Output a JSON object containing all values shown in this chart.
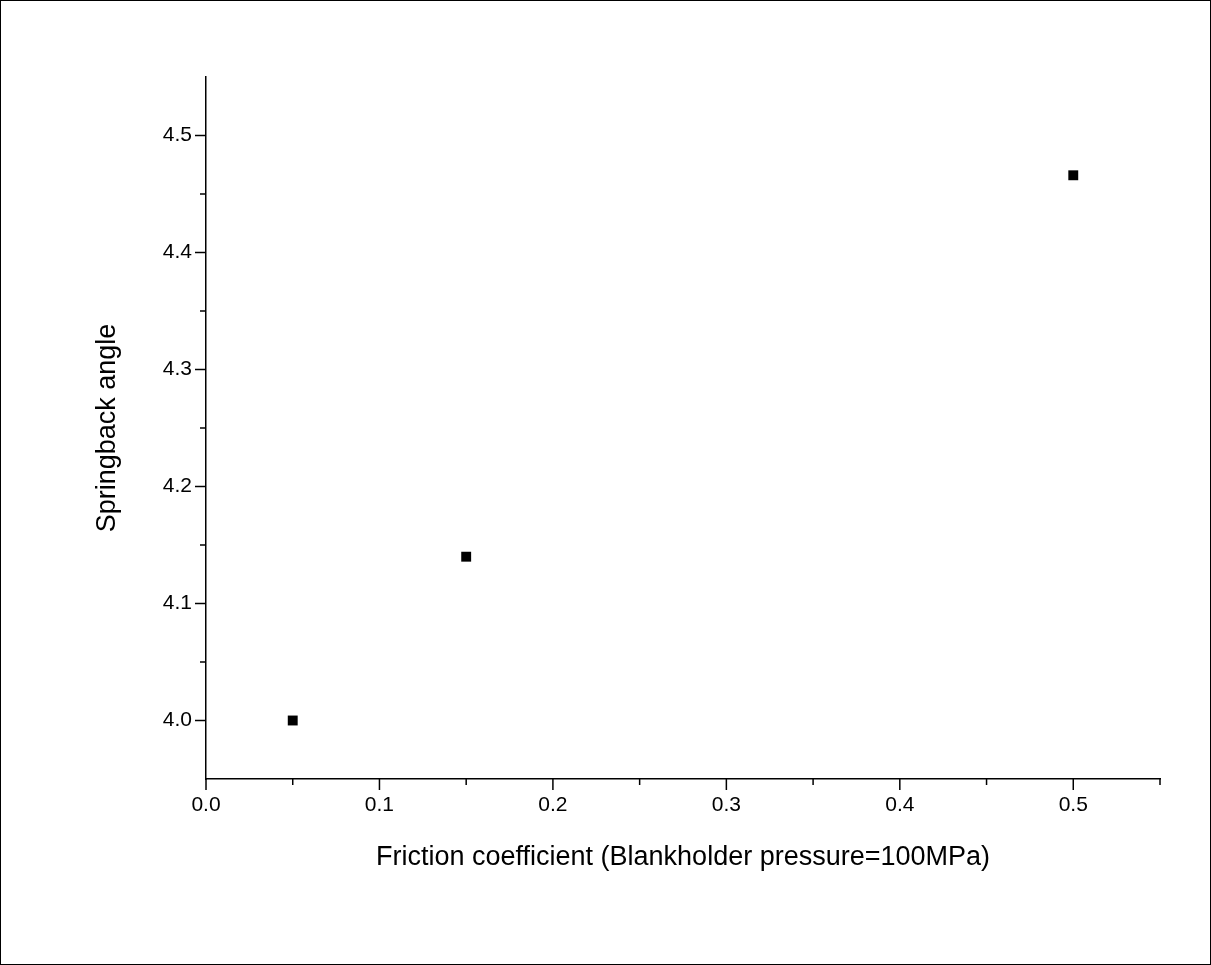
{
  "chart_data": {
    "type": "scatter",
    "xlabel": "Friction coefficient (Blankholder pressure=100MPa)",
    "ylabel": "Springback angle",
    "x": [
      0.05,
      0.15,
      0.5
    ],
    "series": [
      {
        "color": "#000000",
        "values": [
          4.0,
          4.14,
          4.466
        ]
      }
    ],
    "marker": "square",
    "grid": false,
    "legend": false,
    "xlim": [
      0,
      0.55
    ],
    "xticks": [
      {
        "value": 0,
        "label": "0.0"
      },
      {
        "value": 0.05,
        "label": null
      },
      {
        "value": 0.1,
        "label": "0.1"
      },
      {
        "value": 0.15,
        "label": null
      },
      {
        "value": 0.2,
        "label": "0.2"
      },
      {
        "value": 0.25,
        "label": null
      },
      {
        "value": 0.3,
        "label": "0.3"
      },
      {
        "value": 0.35,
        "label": null
      },
      {
        "value": 0.4,
        "label": "0.4"
      },
      {
        "value": 0.45,
        "label": null
      },
      {
        "value": 0.5,
        "label": "0.5"
      },
      {
        "value": 0.55,
        "label": null
      }
    ],
    "ylim": [
      3.95,
      4.55
    ],
    "yticks": [
      {
        "value": 4.0,
        "label": "4.0"
      },
      {
        "value": 4.05,
        "label": null
      },
      {
        "value": 4.1,
        "label": "4.1"
      },
      {
        "value": 4.15,
        "label": null
      },
      {
        "value": 4.2,
        "label": "4.2"
      },
      {
        "value": 4.25,
        "label": null
      },
      {
        "value": 4.3,
        "label": "4.3"
      },
      {
        "value": 4.35,
        "label": null
      },
      {
        "value": 4.4,
        "label": "4.4"
      },
      {
        "value": 4.45,
        "label": null
      },
      {
        "value": 4.5,
        "label": "4.5"
      }
    ]
  }
}
